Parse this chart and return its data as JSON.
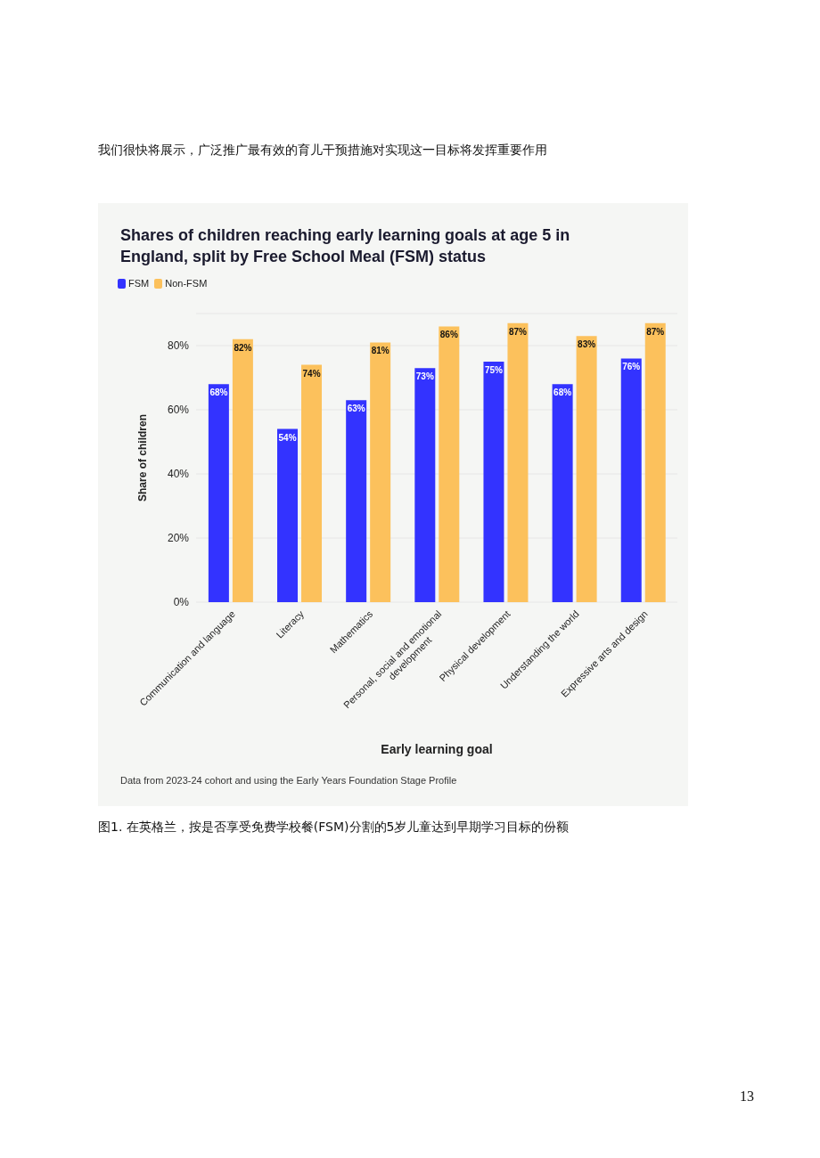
{
  "chart_data": {
    "type": "bar",
    "title": "Shares of children reaching early learning goals at age 5 in England, split by Free School Meal (FSM) status",
    "xlabel": "Early learning goal",
    "ylabel": "Share of children",
    "categories": [
      "Communication and language",
      "Literacy",
      "Mathematics",
      "Personal, social and emotional development",
      "Physical development",
      "Understanding the world",
      "Expressive arts and design"
    ],
    "series": [
      {
        "name": "FSM",
        "color": "#3333ff",
        "values": [
          68,
          54,
          63,
          73,
          75,
          68,
          76
        ],
        "value_labels": [
          "68%",
          "54%",
          "63%",
          "73%",
          "75%",
          "68%",
          "76%"
        ]
      },
      {
        "name": "Non-FSM",
        "color": "#fcc15c",
        "values": [
          82,
          74,
          81,
          86,
          87,
          83,
          87
        ],
        "value_labels": [
          "82%",
          "74%",
          "81%",
          "86%",
          "87%",
          "83%",
          "87%"
        ]
      }
    ],
    "ylim": [
      0,
      90
    ],
    "yticks": [
      {
        "value": 0,
        "label": "0%"
      },
      {
        "value": 20,
        "label": "20%"
      },
      {
        "value": 40,
        "label": "40%"
      },
      {
        "value": 60,
        "label": "60%"
      },
      {
        "value": 80,
        "label": "80%"
      }
    ],
    "grid": "y",
    "legend": "top left",
    "annotations": [
      "我们很快将展示，广泛推广最有效的育儿干预措施对实现这一目标将发挥重要作用",
      "Data from 2023-24 cohort and using the Early Years Foundation Stage Profile",
      "图1. 在英格兰，按是否享受免费学校餐(FSM)分割的5岁儿童达到早期学习目标的份额",
      "13"
    ]
  }
}
